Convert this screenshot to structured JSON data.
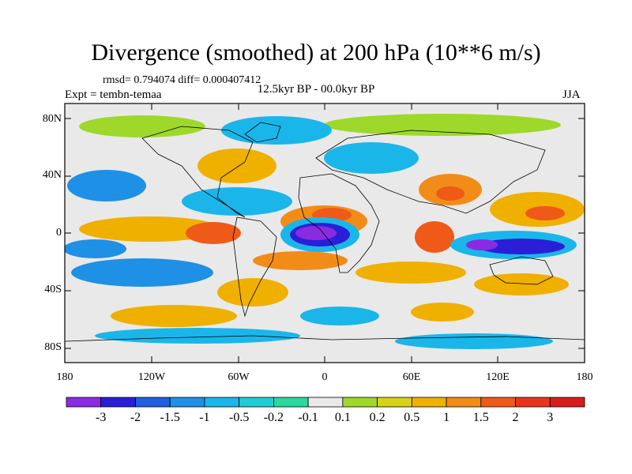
{
  "title": "Divergence (smoothed) at 200 hPa (10**6 m/s)",
  "stats": "rmsd= 0.794074 diff= 0.000407412",
  "experiment": "Expt = tembn-temaa",
  "period": "12.5kyr BP - 00.0kyr BP",
  "season": "JJA",
  "lat_labels": [
    "80N",
    "40N",
    "0",
    "40S",
    "80S"
  ],
  "lon_labels": [
    "180",
    "120W",
    "60W",
    "0",
    "60E",
    "120E",
    "180"
  ],
  "colorbar": {
    "labels": [
      "-3",
      "-2",
      "-1.5",
      "-1",
      "-0.5",
      "-0.2",
      "-0.1",
      "0.1",
      "0.2",
      "0.5",
      "1",
      "1.5",
      "2",
      "3"
    ],
    "colors": [
      "#8a2be2",
      "#2a1fd6",
      "#1f5fe0",
      "#1e90e6",
      "#1ab6ea",
      "#22ccd4",
      "#2ad8a0",
      "#e9e9e9",
      "#9ed82a",
      "#d8d218",
      "#f0b000",
      "#f28c18",
      "#ef5a18",
      "#e8341c",
      "#d81c1c"
    ]
  },
  "colors": {
    "land_outline": "#000000",
    "neutral": "#e9e9e9"
  }
}
